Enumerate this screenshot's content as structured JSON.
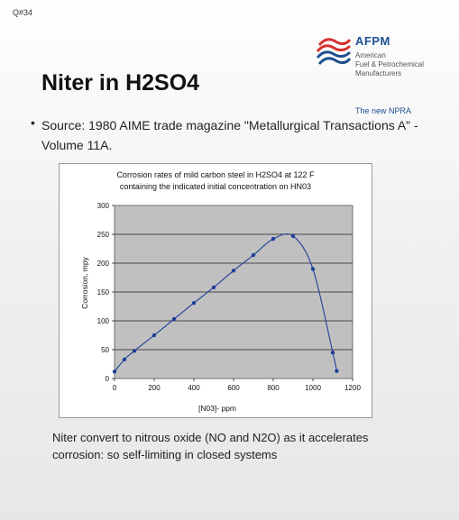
{
  "slide": {
    "id_label": "Q#34",
    "title": "Niter in H2SO4",
    "source_bullet": "•",
    "source_text": "Source: 1980 AIME trade magazine \"Metallurgical Transactions A\" - Volume 11A.",
    "conclusion": "Niter convert to nitrous oxide (NO and  N2O) as it accelerates corrosion: so self-limiting in closed systems"
  },
  "logo": {
    "name": "AFPM",
    "full_name_line1": "American",
    "full_name_line2": "Fuel & Petrochemical",
    "full_name_line3": "Manufacturers",
    "tagline": "The new NPRA",
    "colors": {
      "red": "#d62f2f",
      "blue": "#1c4f8f"
    }
  },
  "chart_data": {
    "type": "line",
    "title_line1": "Corrosion rates of mild carbon steel in H2SO4 at 122 F",
    "title_line2": "containing the indicated initial concentration on HN03",
    "xlabel": "[N03]- ppm",
    "ylabel": "Corrosion, mpy",
    "xlim": [
      0,
      1200
    ],
    "ylim": [
      0,
      300
    ],
    "xticks": [
      0,
      200,
      400,
      600,
      800,
      1000,
      1200
    ],
    "yticks": [
      0,
      50,
      100,
      150,
      200,
      250,
      300
    ],
    "grid": "horizontal",
    "plot_background": "#c0c0c0",
    "series": [
      {
        "color": "#1f3f9a",
        "x": [
          0,
          50,
          100,
          200,
          300,
          400,
          500,
          600,
          700,
          800,
          900,
          1000,
          1100,
          1120
        ],
        "y": [
          12,
          33,
          48,
          75,
          103,
          131,
          158,
          187,
          214,
          242,
          247,
          190,
          45,
          13
        ]
      }
    ]
  }
}
